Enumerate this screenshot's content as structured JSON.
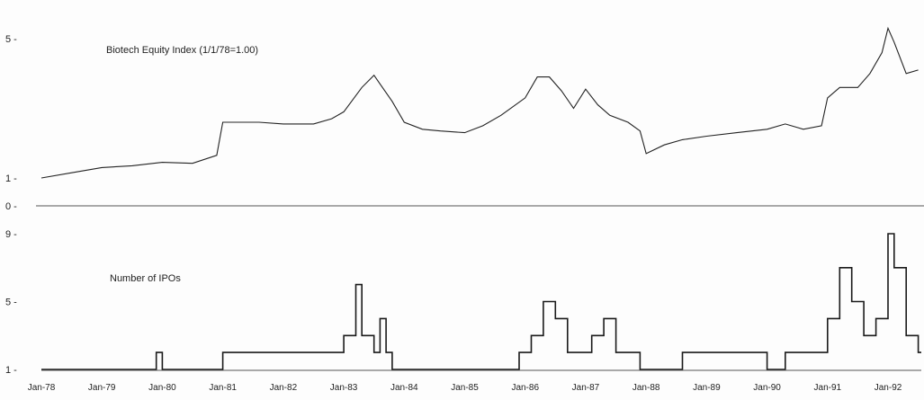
{
  "chart_data": [
    {
      "type": "line",
      "title": "Biotech Equity Index (1/1/78=1.00)",
      "ylabel": "",
      "y_ticks": [
        "5 -",
        "1 -"
      ],
      "y_tick_values": [
        5,
        1
      ],
      "ylim": [
        0.9,
        5.6
      ],
      "grid": false,
      "series": [
        {
          "x": [
            1978.0,
            1978.5,
            1979.0,
            1979.5,
            1980.0,
            1980.5,
            1980.9,
            1981.0,
            1981.3,
            1981.6,
            1982.0,
            1982.5,
            1982.8,
            1983.0,
            1983.3,
            1983.5,
            1983.6,
            1983.8,
            1984.0,
            1984.3,
            1984.6,
            1985.0,
            1985.3,
            1985.6,
            1986.0,
            1986.2,
            1986.4,
            1986.6,
            1986.8,
            1987.0,
            1987.2,
            1987.4,
            1987.7,
            1987.9,
            1988.0,
            1988.3,
            1988.6,
            1989.0,
            1989.5,
            1990.0,
            1990.3,
            1990.6,
            1990.9,
            1991.0,
            1991.2,
            1991.5,
            1991.7,
            1991.9,
            1992.0,
            1992.1,
            1992.3,
            1992.5
          ],
          "y": [
            1.0,
            1.15,
            1.3,
            1.35,
            1.45,
            1.42,
            1.65,
            2.6,
            2.6,
            2.6,
            2.55,
            2.55,
            2.7,
            2.9,
            3.6,
            3.95,
            3.7,
            3.2,
            2.6,
            2.4,
            2.35,
            2.3,
            2.5,
            2.8,
            3.3,
            3.9,
            3.9,
            3.5,
            3.0,
            3.55,
            3.1,
            2.8,
            2.6,
            2.35,
            1.7,
            1.95,
            2.1,
            2.2,
            2.3,
            2.4,
            2.55,
            2.4,
            2.5,
            3.3,
            3.6,
            3.6,
            4.0,
            4.6,
            5.3,
            4.9,
            4.0,
            4.1
          ]
        }
      ]
    },
    {
      "type": "line",
      "title": "Number of IPOs",
      "ylabel": "",
      "y_ticks": [
        "9 -",
        "5 -",
        "1 -"
      ],
      "y_tick_values": [
        9,
        5,
        1
      ],
      "ylim": [
        0.8,
        9.6
      ],
      "grid": false,
      "series": [
        {
          "x": [
            1978.0,
            1978.5,
            1979.0,
            1979.5,
            1979.8,
            1979.9,
            1980.0,
            1980.5,
            1981.0,
            1981.2,
            1981.4,
            1981.6,
            1981.8,
            1982.0,
            1982.2,
            1982.5,
            1982.8,
            1983.0,
            1983.2,
            1983.3,
            1983.5,
            1983.6,
            1983.7,
            1983.8,
            1984.0,
            1984.5,
            1985.0,
            1985.5,
            1985.9,
            1986.1,
            1986.3,
            1986.5,
            1986.7,
            1986.9,
            1987.1,
            1987.3,
            1987.5,
            1987.7,
            1987.9,
            1988.2,
            1988.6,
            1989.0,
            1989.4,
            1989.8,
            1990.0,
            1990.3,
            1990.6,
            1990.9,
            1991.0,
            1991.2,
            1991.4,
            1991.6,
            1991.8,
            1992.0,
            1992.1,
            1992.3,
            1992.5
          ],
          "y": [
            1,
            1,
            1,
            1,
            1,
            2,
            1,
            1,
            2,
            2,
            2,
            2,
            2,
            2,
            2,
            2,
            2,
            3,
            6,
            3,
            2,
            4,
            2,
            1,
            1,
            1,
            1,
            1,
            2,
            3,
            5,
            4,
            2,
            2,
            3,
            4,
            2,
            2,
            1,
            1,
            2,
            2,
            2,
            2,
            1,
            2,
            2,
            2,
            4,
            7,
            5,
            3,
            4,
            9,
            7,
            3,
            2
          ]
        }
      ]
    }
  ],
  "shared_x_axis": {
    "x_ticks": [
      "Jan-78",
      "Jan-79",
      "Jan-80",
      "Jan-81",
      "Jan-82",
      "Jan-83",
      "Jan-84",
      "Jan-85",
      "Jan-86",
      "Jan-87",
      "Jan-88",
      "Jan-89",
      "Jan-90",
      "Jan-91",
      "Jan-92"
    ],
    "x_tick_values": [
      1978,
      1979,
      1980,
      1981,
      1982,
      1983,
      1984,
      1985,
      1986,
      1987,
      1988,
      1989,
      1990,
      1991,
      1992
    ],
    "xlim": [
      1978,
      1992.55
    ]
  },
  "separator_label": "0 -",
  "colors": {
    "line": "#222222",
    "step": "#1a1a1a",
    "axis": "#555555"
  }
}
